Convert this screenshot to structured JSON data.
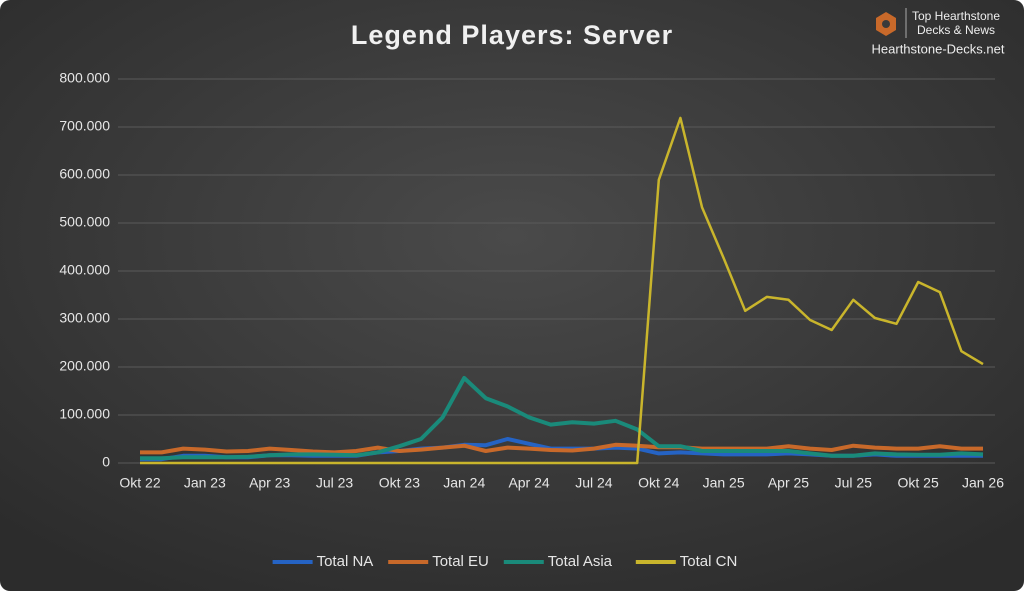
{
  "chart_data": {
    "type": "line",
    "title": "Legend Players: Server",
    "categories": [
      "Okt 22",
      null,
      null,
      "Jan 23",
      null,
      null,
      "Apr 23",
      null,
      null,
      "Jul 23",
      null,
      null,
      "Okt 23",
      null,
      null,
      "Jan 24",
      null,
      null,
      "Apr 24",
      null,
      null,
      "Jul 24",
      null,
      null,
      "Okt 24",
      null,
      null,
      "Jan 25",
      null,
      null,
      "Apr 25",
      null,
      null,
      "Jul 25",
      null,
      null,
      "Okt 25",
      null,
      null,
      "Jan 26"
    ],
    "series": [
      {
        "name": "Total NA",
        "color": "#2563c4",
        "values": [
          8000,
          8000,
          15000,
          15000,
          12000,
          12000,
          16000,
          16000,
          15000,
          15000,
          15000,
          22000,
          25000,
          30000,
          32000,
          38000,
          37000,
          50000,
          40000,
          30000,
          30000,
          30000,
          32000,
          30000,
          20000,
          22000,
          20000,
          18000,
          18000,
          18000,
          20000,
          18000,
          15000,
          15000,
          18000,
          15000,
          15000,
          15000,
          15000,
          15000
        ]
      },
      {
        "name": "Total EU",
        "color": "#c8692a",
        "values": [
          22000,
          22000,
          30000,
          28000,
          24000,
          25000,
          30000,
          27000,
          24000,
          22000,
          25000,
          32000,
          25000,
          28000,
          32000,
          36000,
          25000,
          32000,
          30000,
          27000,
          26000,
          30000,
          38000,
          36000,
          33000,
          33000,
          30000,
          30000,
          30000,
          30000,
          35000,
          30000,
          27000,
          36000,
          32000,
          30000,
          30000,
          35000,
          30000,
          30000
        ]
      },
      {
        "name": "Total Asia",
        "color": "#1a8a7a",
        "values": [
          10000,
          10000,
          12000,
          12000,
          12000,
          13000,
          16000,
          18000,
          18000,
          17000,
          16000,
          22000,
          35000,
          50000,
          95000,
          177000,
          135000,
          118000,
          95000,
          80000,
          85000,
          82000,
          88000,
          70000,
          35000,
          35000,
          25000,
          25000,
          25000,
          25000,
          25000,
          20000,
          15000,
          15000,
          20000,
          18000,
          17000,
          17000,
          20000,
          18000
        ]
      },
      {
        "name": "Total CN",
        "color": "#c9b52c",
        "values": [
          0,
          0,
          0,
          0,
          0,
          0,
          0,
          0,
          0,
          0,
          0,
          0,
          0,
          0,
          0,
          0,
          0,
          0,
          0,
          0,
          0,
          0,
          0,
          0,
          590000,
          719000,
          533000,
          427000,
          317000,
          346000,
          340000,
          298000,
          277000,
          340000,
          302000,
          290000,
          377000,
          356000,
          233000,
          206000
        ]
      }
    ],
    "ylim": [
      0,
      800000
    ],
    "yticks": [
      0,
      {
        "value": 100000,
        "label": "100.000"
      },
      {
        "value": 200000,
        "label": "200.000"
      },
      {
        "value": 300000,
        "label": "300.000"
      },
      {
        "value": 400000,
        "label": "400.000"
      },
      {
        "value": 500000,
        "label": "500.000"
      },
      {
        "value": 600000,
        "label": "600.000"
      },
      {
        "value": 700000,
        "label": "700.000"
      },
      {
        "value": 800000,
        "label": "800.000"
      }
    ],
    "grid": true,
    "legend": "bottom"
  },
  "logo": {
    "line1": "Top Hearthstone",
    "line2": "Decks & News",
    "site": "Hearthstone-Decks.net"
  }
}
